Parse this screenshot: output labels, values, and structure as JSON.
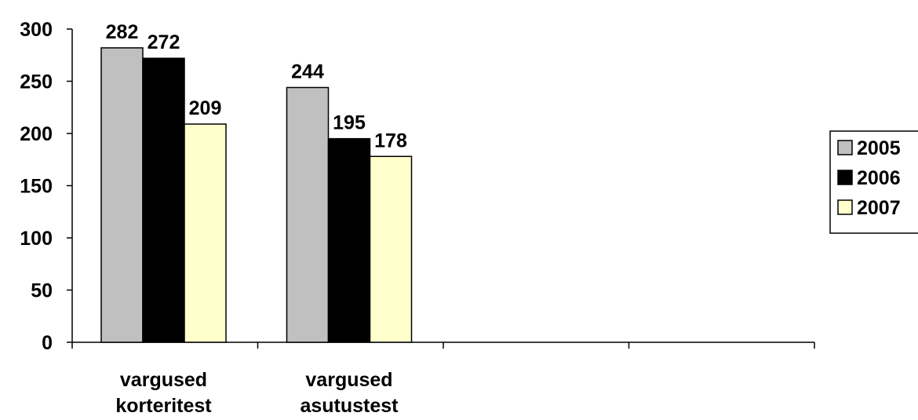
{
  "chart_data": {
    "type": "bar",
    "categories": [
      [
        "vargused",
        "korteritest"
      ],
      [
        "vargused",
        "asutustest"
      ],
      [
        "",
        ""
      ],
      [
        "",
        ""
      ]
    ],
    "series": [
      {
        "name": "2005",
        "values": [
          282,
          244,
          null,
          null
        ],
        "color": "#c0c0c0"
      },
      {
        "name": "2006",
        "values": [
          272,
          195,
          null,
          null
        ],
        "color": "#000000"
      },
      {
        "name": "2007",
        "values": [
          209,
          178,
          null,
          null
        ],
        "color": "#ffffcc"
      }
    ],
    "ylim": [
      0,
      300
    ],
    "yticks": [
      0,
      50,
      100,
      150,
      200,
      250,
      300
    ],
    "data_labels": true,
    "grid": false,
    "legend_position": "right"
  }
}
